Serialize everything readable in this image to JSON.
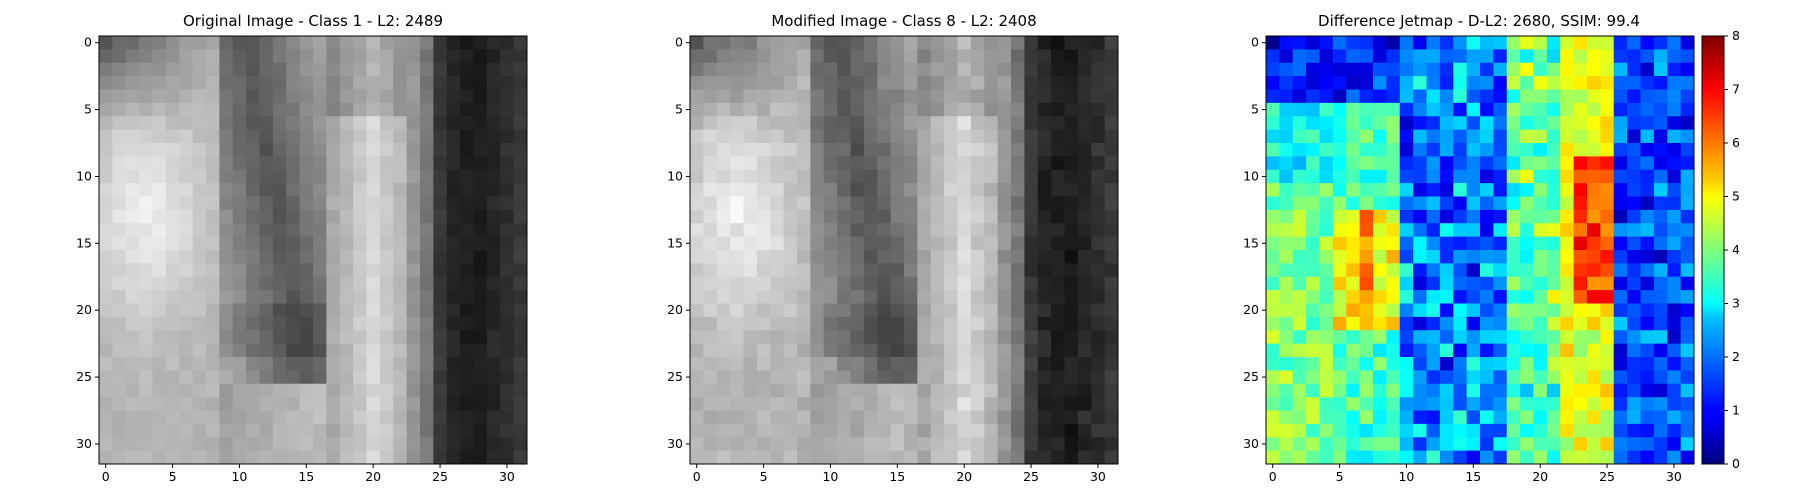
{
  "chart_data": [
    {
      "type": "heatmap",
      "title": "Original Image - Class 1 - L2: 2489",
      "title_color": "#000000",
      "colormap": "gray",
      "xticks": [
        0,
        5,
        10,
        15,
        20,
        25,
        30
      ],
      "yticks": [
        0,
        5,
        10,
        15,
        20,
        25,
        30
      ],
      "xlim": [
        -0.5,
        31.5
      ],
      "ylim": [
        31.5,
        -0.5
      ],
      "grid_size": [
        32,
        32
      ]
    },
    {
      "type": "heatmap",
      "title": "Modified Image - Class 8 - L2: 2408",
      "title_color": "#ff0000",
      "colormap": "gray",
      "xticks": [
        0,
        5,
        10,
        15,
        20,
        25,
        30
      ],
      "yticks": [
        0,
        5,
        10,
        15,
        20,
        25,
        30
      ],
      "xlim": [
        -0.5,
        31.5
      ],
      "ylim": [
        31.5,
        -0.5
      ],
      "grid_size": [
        32,
        32
      ]
    },
    {
      "type": "heatmap",
      "title": "Difference Jetmap - D-L2: 2680, SSIM: 99.4",
      "title_color": "#000000",
      "colormap": "jet",
      "xticks": [
        0,
        5,
        10,
        15,
        20,
        25,
        30
      ],
      "yticks": [
        0,
        5,
        10,
        15,
        20,
        25,
        30
      ],
      "xlim": [
        -0.5,
        31.5
      ],
      "ylim": [
        31.5,
        -0.5
      ],
      "grid_size": [
        32,
        32
      ],
      "colorbar": {
        "min": 0,
        "max": 8,
        "ticks": [
          0,
          1,
          2,
          3,
          4,
          5,
          6,
          7,
          8
        ]
      }
    }
  ]
}
